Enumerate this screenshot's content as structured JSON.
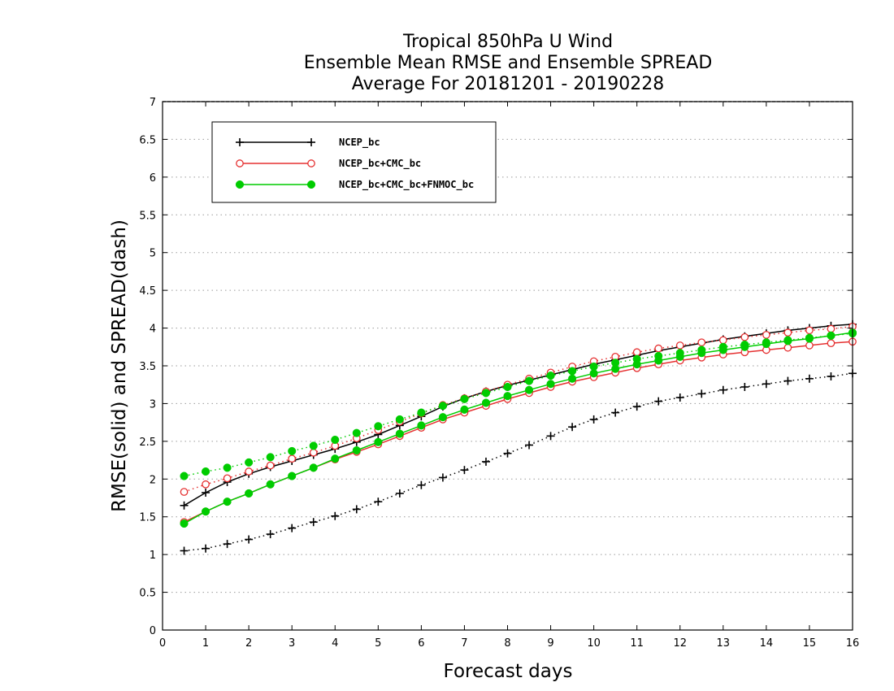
{
  "chart_data": {
    "type": "line",
    "title": [
      "Tropical 850hPa U Wind",
      "Ensemble Mean RMSE and Ensemble SPREAD",
      "Average For 20181201 - 20190228"
    ],
    "xlabel": "Forecast days",
    "ylabel": "RMSE(solid) and SPREAD(dash)",
    "xlim": [
      0,
      16
    ],
    "ylim": [
      0,
      7
    ],
    "xticks": [
      0,
      1,
      2,
      3,
      4,
      5,
      6,
      7,
      8,
      9,
      10,
      11,
      12,
      13,
      14,
      15,
      16
    ],
    "yticks": [
      0,
      0.5,
      1,
      1.5,
      2,
      2.5,
      3,
      3.5,
      4,
      4.5,
      5,
      5.5,
      6,
      6.5,
      7
    ],
    "grid": "horizontal-dotted",
    "legend_position": "top-left",
    "x": [
      0.5,
      1,
      1.5,
      2,
      2.5,
      3,
      3.5,
      4,
      4.5,
      5,
      5.5,
      6,
      6.5,
      7,
      7.5,
      8,
      8.5,
      9,
      9.5,
      10,
      10.5,
      11,
      11.5,
      12,
      12.5,
      13,
      13.5,
      14,
      14.5,
      15,
      15.5,
      16
    ],
    "series": [
      {
        "name": "NCEP_bc",
        "color": "#000000",
        "marker": "plus",
        "rmse": [
          1.65,
          1.82,
          1.96,
          2.07,
          2.16,
          2.24,
          2.32,
          2.4,
          2.49,
          2.59,
          2.71,
          2.83,
          2.96,
          3.07,
          3.16,
          3.24,
          3.31,
          3.38,
          3.45,
          3.52,
          3.58,
          3.64,
          3.7,
          3.75,
          3.8,
          3.85,
          3.89,
          3.93,
          3.97,
          4.0,
          4.03,
          4.05
        ],
        "spread": [
          1.05,
          1.08,
          1.14,
          1.2,
          1.27,
          1.35,
          1.43,
          1.51,
          1.6,
          1.7,
          1.81,
          1.92,
          2.02,
          2.12,
          2.23,
          2.34,
          2.45,
          2.57,
          2.69,
          2.79,
          2.88,
          2.96,
          3.03,
          3.08,
          3.13,
          3.18,
          3.22,
          3.26,
          3.3,
          3.33,
          3.36,
          3.4
        ]
      },
      {
        "name": "NCEP_bc+CMC_bc",
        "color": "#e53030",
        "marker": "open-circle",
        "rmse": [
          1.43,
          1.57,
          1.7,
          1.81,
          1.93,
          2.04,
          2.15,
          2.26,
          2.36,
          2.46,
          2.57,
          2.68,
          2.79,
          2.88,
          2.97,
          3.06,
          3.14,
          3.22,
          3.29,
          3.35,
          3.41,
          3.47,
          3.52,
          3.57,
          3.61,
          3.65,
          3.68,
          3.71,
          3.74,
          3.77,
          3.8,
          3.82
        ],
        "spread": [
          1.83,
          1.93,
          2.01,
          2.1,
          2.18,
          2.27,
          2.35,
          2.44,
          2.54,
          2.65,
          2.76,
          2.87,
          2.98,
          3.07,
          3.16,
          3.25,
          3.33,
          3.41,
          3.49,
          3.56,
          3.62,
          3.68,
          3.73,
          3.77,
          3.81,
          3.84,
          3.88,
          3.91,
          3.94,
          3.97,
          3.99,
          4.02
        ]
      },
      {
        "name": "NCEP_bc+CMC_bc+FNMOC_bc",
        "color": "#00cc00",
        "marker": "filled-circle",
        "rmse": [
          1.41,
          1.57,
          1.7,
          1.81,
          1.93,
          2.04,
          2.15,
          2.27,
          2.38,
          2.49,
          2.6,
          2.71,
          2.82,
          2.92,
          3.01,
          3.1,
          3.18,
          3.26,
          3.33,
          3.4,
          3.46,
          3.52,
          3.57,
          3.62,
          3.67,
          3.71,
          3.75,
          3.79,
          3.83,
          3.86,
          3.9,
          3.94
        ],
        "spread": [
          2.04,
          2.1,
          2.15,
          2.22,
          2.29,
          2.37,
          2.44,
          2.52,
          2.61,
          2.7,
          2.79,
          2.88,
          2.97,
          3.06,
          3.14,
          3.22,
          3.3,
          3.37,
          3.43,
          3.49,
          3.54,
          3.59,
          3.63,
          3.67,
          3.71,
          3.75,
          3.78,
          3.81,
          3.84,
          3.87,
          3.9,
          3.93
        ]
      }
    ]
  }
}
